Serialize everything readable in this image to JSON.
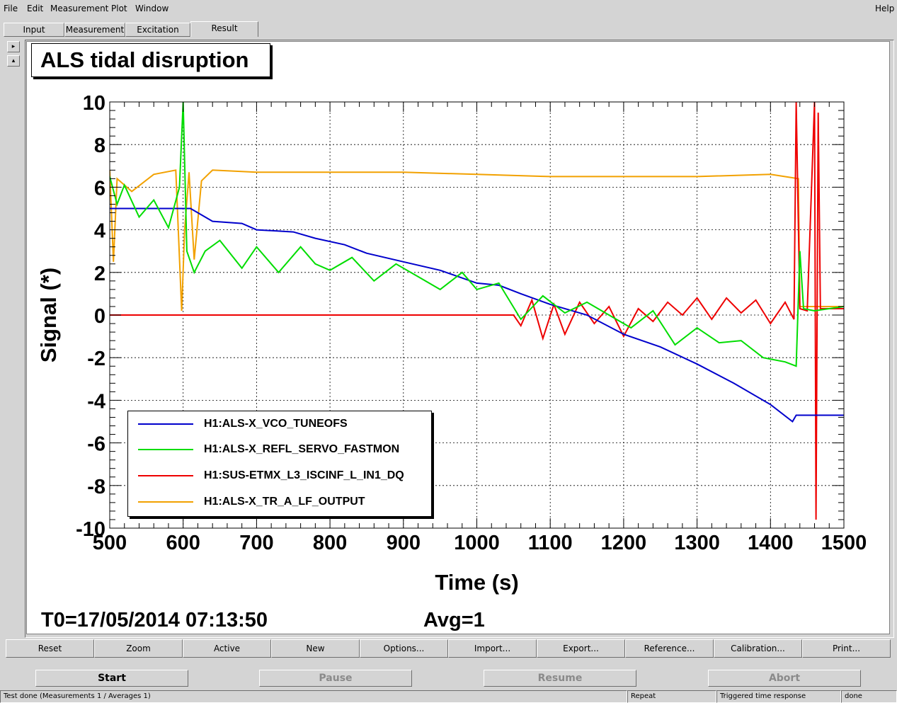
{
  "menubar": {
    "file": "File",
    "edit": "Edit",
    "measurement": "Measurement",
    "plot": "Plot",
    "window": "Window",
    "help": "Help"
  },
  "tabs": [
    {
      "label": "Input"
    },
    {
      "label": "Measurement"
    },
    {
      "label": "Excitation"
    },
    {
      "label": "Result"
    }
  ],
  "scroll": {
    "up": "▸",
    "down": "▴"
  },
  "plot": {
    "title": "ALS tidal disruption",
    "t0": "T0=17/05/2014 07:13:50",
    "avg": "Avg=1"
  },
  "chart_data": {
    "type": "line",
    "xlabel": "Time (s)",
    "ylabel": "Signal (*)",
    "xlim": [
      500,
      1500
    ],
    "ylim": [
      -10,
      10
    ],
    "xticks": [
      500,
      600,
      700,
      800,
      900,
      1000,
      1100,
      1200,
      1300,
      1400,
      1500
    ],
    "yticks": [
      -10,
      -8,
      -6,
      -4,
      -2,
      0,
      2,
      4,
      6,
      8,
      10
    ],
    "grid": true,
    "legend_position": "bottom-left",
    "series": [
      {
        "name": "H1:ALS-X_VCO_TUNEOFS",
        "color": "#0000cc",
        "x": [
          500,
          610,
          640,
          680,
          700,
          750,
          780,
          820,
          850,
          900,
          950,
          1000,
          1030,
          1060,
          1100,
          1150,
          1200,
          1250,
          1300,
          1350,
          1400,
          1430,
          1435,
          1500
        ],
        "y": [
          5.0,
          5.0,
          4.4,
          4.3,
          4.0,
          3.9,
          3.6,
          3.3,
          2.9,
          2.5,
          2.1,
          1.5,
          1.4,
          1.0,
          0.5,
          0,
          -0.9,
          -1.5,
          -2.3,
          -3.2,
          -4.2,
          -5.0,
          -4.7,
          -4.7
        ]
      },
      {
        "name": "H1:ALS-X_REFL_SERVO_FASTMON",
        "color": "#00dd00",
        "x": [
          500,
          510,
          520,
          540,
          560,
          580,
          595,
          600,
          605,
          615,
          630,
          650,
          680,
          700,
          730,
          760,
          780,
          800,
          830,
          860,
          890,
          920,
          950,
          980,
          1000,
          1030,
          1060,
          1090,
          1120,
          1150,
          1180,
          1210,
          1240,
          1270,
          1300,
          1330,
          1360,
          1390,
          1420,
          1435,
          1440,
          1445,
          1460,
          1500
        ],
        "y": [
          6.5,
          5.2,
          6.1,
          4.6,
          5.4,
          4.1,
          6.0,
          10.0,
          3.0,
          2.0,
          3.0,
          3.5,
          2.2,
          3.2,
          2.0,
          3.2,
          2.4,
          2.1,
          2.7,
          1.6,
          2.4,
          1.8,
          1.2,
          2.0,
          1.2,
          1.5,
          -0.2,
          0.9,
          0.1,
          0.6,
          0.0,
          -0.6,
          0.2,
          -1.4,
          -0.6,
          -1.3,
          -1.2,
          -2.0,
          -2.2,
          -2.4,
          3.0,
          0.3,
          0.2,
          0.4
        ]
      },
      {
        "name": "H1:SUS-ETMX_L3_ISCINF_L_IN1_DQ",
        "color": "#ee0000",
        "x": [
          500,
          1050,
          1060,
          1075,
          1090,
          1105,
          1120,
          1140,
          1160,
          1180,
          1200,
          1220,
          1240,
          1260,
          1280,
          1300,
          1320,
          1340,
          1360,
          1380,
          1400,
          1420,
          1432,
          1435,
          1440,
          1450,
          1460,
          1462,
          1465,
          1468,
          1500
        ],
        "y": [
          0,
          0,
          -0.5,
          0.7,
          -1.1,
          0.5,
          -0.9,
          0.6,
          -0.4,
          0.4,
          -1.0,
          0.3,
          -0.3,
          0.6,
          0.0,
          0.8,
          -0.2,
          0.8,
          0.1,
          0.7,
          -0.4,
          0.6,
          -0.2,
          10,
          0.3,
          0.2,
          10,
          -9.6,
          9.5,
          0.3,
          0.3
        ]
      },
      {
        "name": "H1:ALS-X_TR_A_LF_OUTPUT",
        "color": "#f2a100",
        "x": [
          500,
          505,
          510,
          530,
          560,
          590,
          598,
          602,
          608,
          615,
          625,
          640,
          700,
          800,
          900,
          1000,
          1100,
          1200,
          1300,
          1400,
          1438,
          1440,
          1500
        ],
        "y": [
          6.8,
          2.5,
          6.4,
          5.8,
          6.6,
          6.8,
          0.2,
          4.0,
          6.7,
          2.6,
          6.3,
          6.8,
          6.7,
          6.7,
          6.7,
          6.6,
          6.5,
          6.5,
          6.5,
          6.6,
          6.4,
          0.4,
          0.4
        ]
      }
    ]
  },
  "toolbar": [
    "Reset",
    "Zoom",
    "Active",
    "New",
    "Options...",
    "Import...",
    "Export...",
    "Reference...",
    "Calibration...",
    "Print..."
  ],
  "controls": {
    "start": "Start",
    "pause": "Pause",
    "resume": "Resume",
    "abort": "Abort"
  },
  "status": {
    "main": "Test done (Measurements 1 / Averages 1)",
    "repeat": "Repeat",
    "mode": "Triggered time response",
    "state": "done"
  }
}
